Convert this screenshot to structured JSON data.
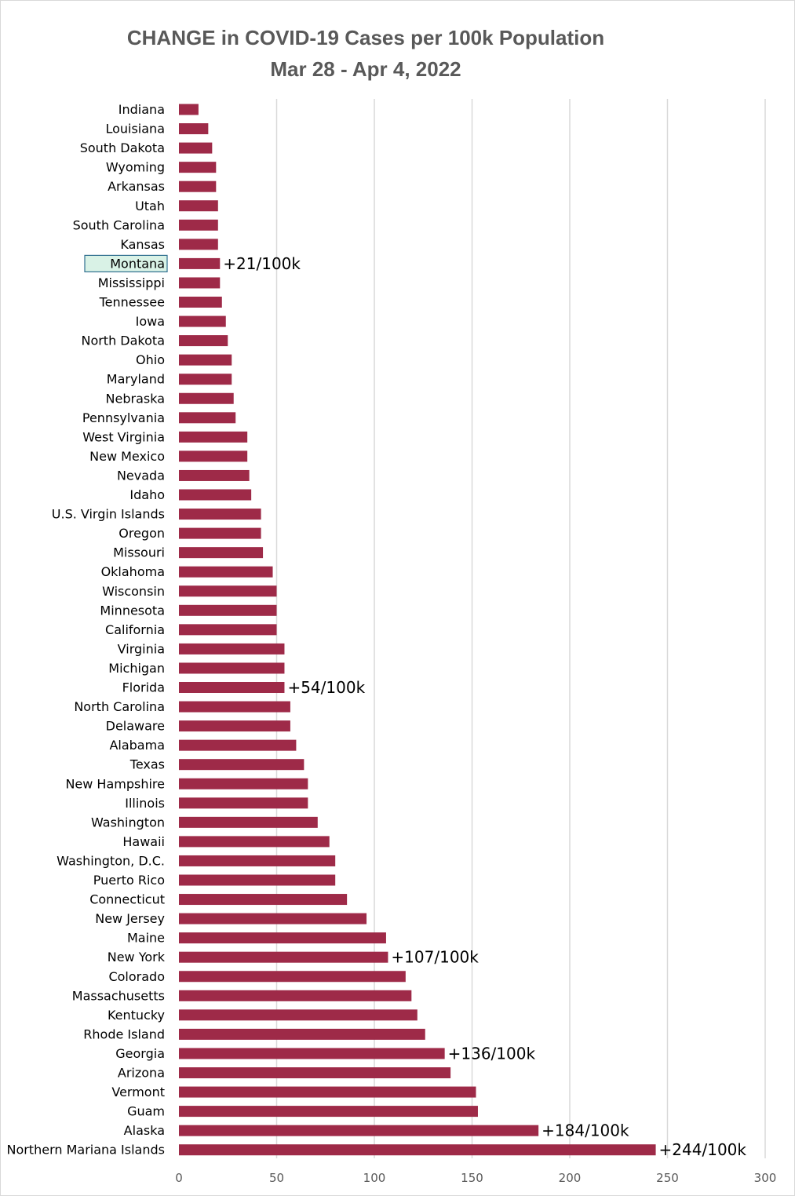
{
  "colors": {
    "bar": "#9e2a48",
    "grid": "#d9d9d9",
    "highlight_fill": "#d9f2e6",
    "highlight_border": "#2f6f8f"
  },
  "chart_data": {
    "type": "bar",
    "orientation": "horizontal",
    "title": "CHANGE in COVID-19 Cases per 100k Population",
    "subtitle": "Mar 28 - Apr 4, 2022",
    "xlabel": "",
    "ylabel": "",
    "xlim": [
      0,
      300
    ],
    "xticks": [
      0,
      50,
      100,
      150,
      200,
      250,
      300
    ],
    "grid": true,
    "legend": "none",
    "highlighted_category": "Montana",
    "categories": [
      "Indiana",
      "Louisiana",
      "South Dakota",
      "Wyoming",
      "Arkansas",
      "Utah",
      "South Carolina",
      "Kansas",
      "Montana",
      "Mississippi",
      "Tennessee",
      "Iowa",
      "North Dakota",
      "Ohio",
      "Maryland",
      "Nebraska",
      "Pennsylvania",
      "West Virginia",
      "New Mexico",
      "Nevada",
      "Idaho",
      "U.S. Virgin Islands",
      "Oregon",
      "Missouri",
      "Oklahoma",
      "Wisconsin",
      "Minnesota",
      "California",
      "Virginia",
      "Michigan",
      "Florida",
      "North Carolina",
      "Delaware",
      "Alabama",
      "Texas",
      "New Hampshire",
      "Illinois",
      "Washington",
      "Hawaii",
      "Washington, D.C.",
      "Puerto Rico",
      "Connecticut",
      "New Jersey",
      "Maine",
      "New York",
      "Colorado",
      "Massachusetts",
      "Kentucky",
      "Rhode Island",
      "Georgia",
      "Arizona",
      "Vermont",
      "Guam",
      "Alaska",
      "Northern Mariana Islands"
    ],
    "values": [
      10,
      15,
      17,
      19,
      19,
      20,
      20,
      20,
      21,
      21,
      22,
      24,
      25,
      27,
      27,
      28,
      29,
      35,
      35,
      36,
      37,
      42,
      42,
      43,
      48,
      50,
      50,
      50,
      54,
      54,
      54,
      57,
      57,
      60,
      64,
      66,
      66,
      71,
      77,
      80,
      80,
      86,
      96,
      106,
      107,
      116,
      119,
      122,
      126,
      136,
      139,
      152,
      153,
      184,
      244
    ],
    "annotations": [
      {
        "category": "Montana",
        "text": "+21/100k"
      },
      {
        "category": "Florida",
        "text": "+54/100k"
      },
      {
        "category": "New York",
        "text": "+107/100k"
      },
      {
        "category": "Georgia",
        "text": "+136/100k"
      },
      {
        "category": "Alaska",
        "text": "+184/100k"
      },
      {
        "category": "Northern Mariana Islands",
        "text": "+244/100k"
      }
    ]
  }
}
